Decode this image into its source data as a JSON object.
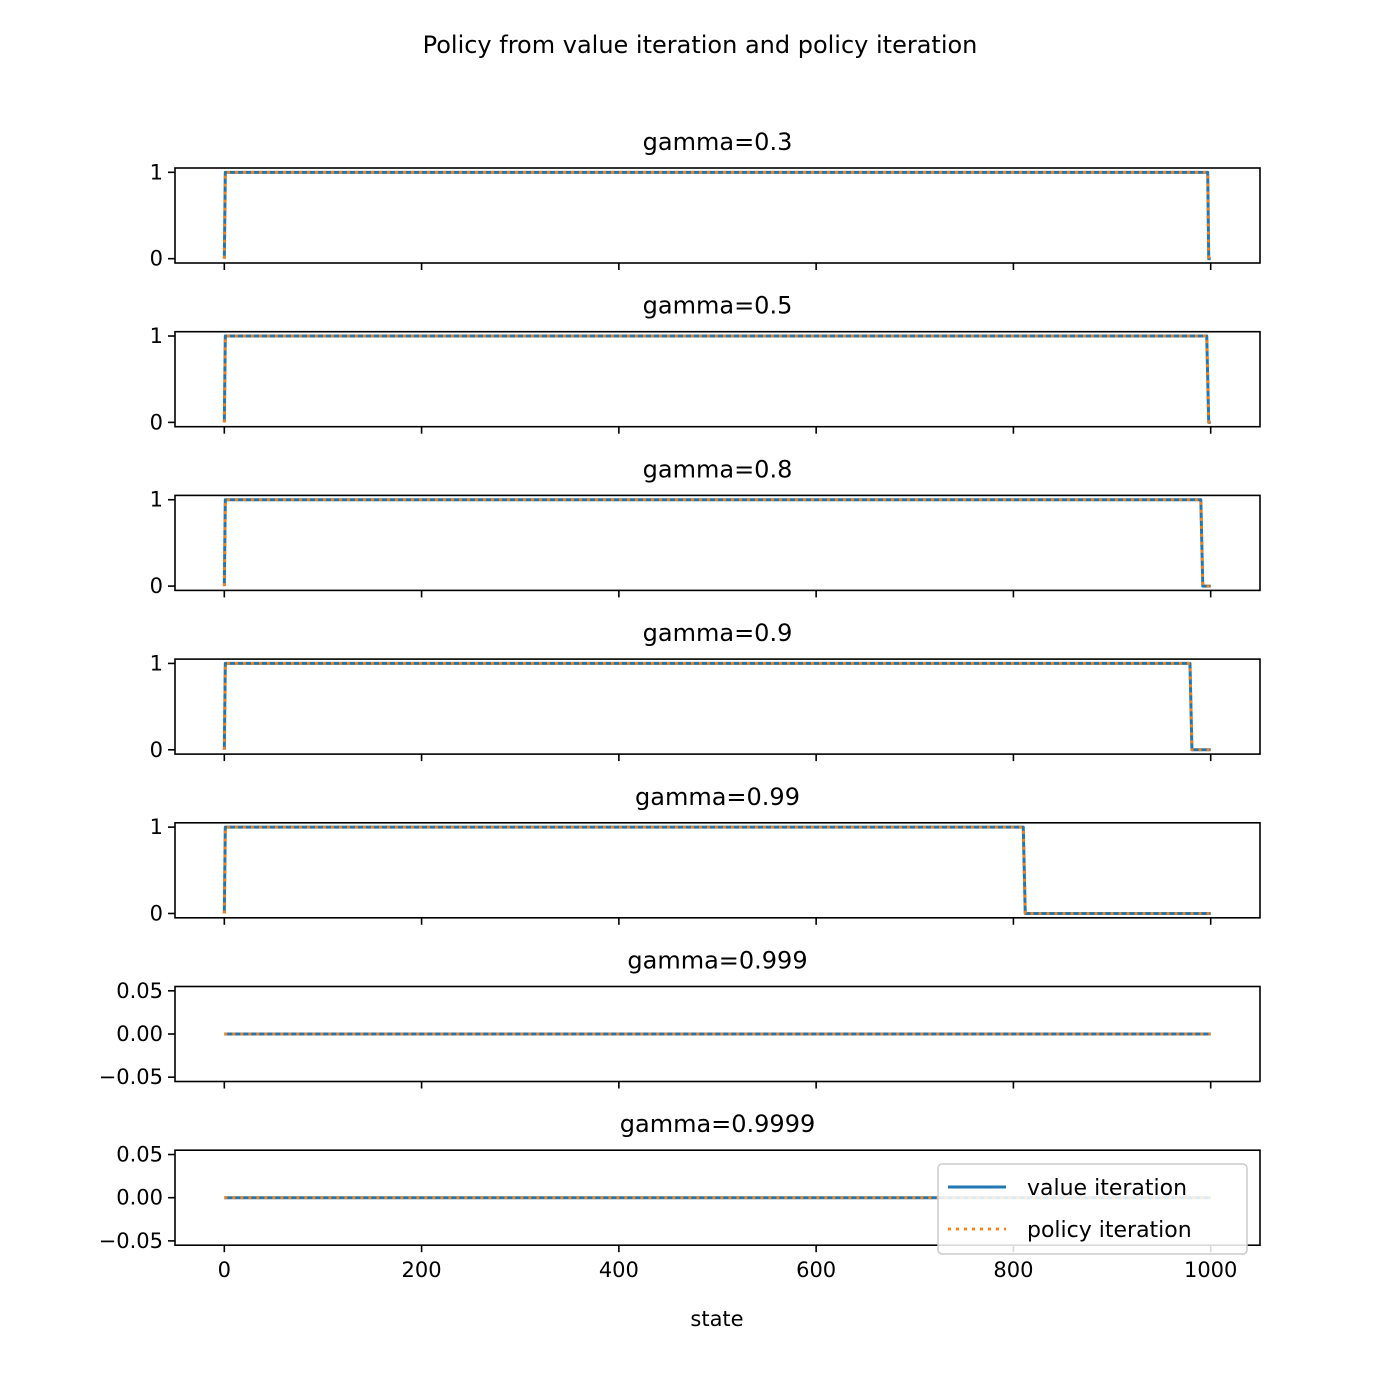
{
  "figure": {
    "title": "Policy from value iteration and policy iteration",
    "xlabel": "state"
  },
  "legend": {
    "placement": "lower-right",
    "entries": [
      {
        "label": "value iteration",
        "color": "#1f77b4",
        "style": "solid"
      },
      {
        "label": "policy iteration",
        "color": "#ff7f0e",
        "style": "dotted"
      }
    ]
  },
  "chart_data": [
    {
      "type": "line",
      "title": "gamma=0.3",
      "xlim": [
        -50,
        1050
      ],
      "xticks": [
        0,
        200,
        400,
        600,
        800,
        1000
      ],
      "xtick_labels_shown": false,
      "ylim": [
        -0.05,
        1.05
      ],
      "yticks": [
        0,
        1
      ],
      "ytick_labels": [
        "0",
        "1"
      ],
      "series": [
        {
          "name": "value iteration",
          "x": [
            0,
            1,
            997,
            998,
            1000
          ],
          "y": [
            0,
            1,
            1,
            0,
            0
          ]
        },
        {
          "name": "policy iteration",
          "x": [
            0,
            1,
            997,
            998,
            1000
          ],
          "y": [
            0,
            1,
            1,
            0,
            0
          ]
        }
      ]
    },
    {
      "type": "line",
      "title": "gamma=0.5",
      "xlim": [
        -50,
        1050
      ],
      "xticks": [
        0,
        200,
        400,
        600,
        800,
        1000
      ],
      "xtick_labels_shown": false,
      "ylim": [
        -0.05,
        1.05
      ],
      "yticks": [
        0,
        1
      ],
      "ytick_labels": [
        "0",
        "1"
      ],
      "series": [
        {
          "name": "value iteration",
          "x": [
            0,
            1,
            996,
            998,
            1000
          ],
          "y": [
            0,
            1,
            1,
            0,
            0
          ]
        },
        {
          "name": "policy iteration",
          "x": [
            0,
            1,
            996,
            998,
            1000
          ],
          "y": [
            0,
            1,
            1,
            0,
            0
          ]
        }
      ]
    },
    {
      "type": "line",
      "title": "gamma=0.8",
      "xlim": [
        -50,
        1050
      ],
      "xticks": [
        0,
        200,
        400,
        600,
        800,
        1000
      ],
      "xtick_labels_shown": false,
      "ylim": [
        -0.05,
        1.05
      ],
      "yticks": [
        0,
        1
      ],
      "ytick_labels": [
        "0",
        "1"
      ],
      "series": [
        {
          "name": "value iteration",
          "x": [
            0,
            1,
            990,
            992,
            1000
          ],
          "y": [
            0,
            1,
            1,
            0,
            0
          ]
        },
        {
          "name": "policy iteration",
          "x": [
            0,
            1,
            990,
            992,
            1000
          ],
          "y": [
            0,
            1,
            1,
            0,
            0
          ]
        }
      ]
    },
    {
      "type": "line",
      "title": "gamma=0.9",
      "xlim": [
        -50,
        1050
      ],
      "xticks": [
        0,
        200,
        400,
        600,
        800,
        1000
      ],
      "xtick_labels_shown": false,
      "ylim": [
        -0.05,
        1.05
      ],
      "yticks": [
        0,
        1
      ],
      "ytick_labels": [
        "0",
        "1"
      ],
      "series": [
        {
          "name": "value iteration",
          "x": [
            0,
            1,
            979,
            981,
            1000
          ],
          "y": [
            0,
            1,
            1,
            0,
            0
          ]
        },
        {
          "name": "policy iteration",
          "x": [
            0,
            1,
            979,
            981,
            1000
          ],
          "y": [
            0,
            1,
            1,
            0,
            0
          ]
        }
      ]
    },
    {
      "type": "line",
      "title": "gamma=0.99",
      "xlim": [
        -50,
        1050
      ],
      "xticks": [
        0,
        200,
        400,
        600,
        800,
        1000
      ],
      "xtick_labels_shown": false,
      "ylim": [
        -0.05,
        1.05
      ],
      "yticks": [
        0,
        1
      ],
      "ytick_labels": [
        "0",
        "1"
      ],
      "series": [
        {
          "name": "value iteration",
          "x": [
            0,
            1,
            810,
            812,
            1000
          ],
          "y": [
            0,
            1,
            1,
            0,
            0
          ]
        },
        {
          "name": "policy iteration",
          "x": [
            0,
            1,
            810,
            812,
            1000
          ],
          "y": [
            0,
            1,
            1,
            0,
            0
          ]
        }
      ]
    },
    {
      "type": "line",
      "title": "gamma=0.999",
      "xlim": [
        -50,
        1050
      ],
      "xticks": [
        0,
        200,
        400,
        600,
        800,
        1000
      ],
      "xtick_labels_shown": false,
      "ylim": [
        -0.055,
        0.055
      ],
      "yticks": [
        0.05,
        0,
        -0.05
      ],
      "ytick_labels": [
        "0.05",
        "0.00",
        "−0.05"
      ],
      "series": [
        {
          "name": "value iteration",
          "x": [
            0,
            1000
          ],
          "y": [
            0,
            0
          ]
        },
        {
          "name": "policy iteration",
          "x": [
            0,
            1000
          ],
          "y": [
            0,
            0
          ]
        }
      ]
    },
    {
      "type": "line",
      "title": "gamma=0.9999",
      "xlim": [
        -50,
        1050
      ],
      "xticks": [
        0,
        200,
        400,
        600,
        800,
        1000
      ],
      "xtick_labels_shown": true,
      "xtick_labels": [
        "0",
        "200",
        "400",
        "600",
        "800",
        "1000"
      ],
      "ylim": [
        -0.055,
        0.055
      ],
      "yticks": [
        0.05,
        0,
        -0.05
      ],
      "ytick_labels": [
        "0.05",
        "0.00",
        "−0.05"
      ],
      "series": [
        {
          "name": "value iteration",
          "x": [
            0,
            1000
          ],
          "y": [
            0,
            0
          ]
        },
        {
          "name": "policy iteration",
          "x": [
            0,
            1000
          ],
          "y": [
            0,
            0
          ]
        }
      ]
    }
  ]
}
